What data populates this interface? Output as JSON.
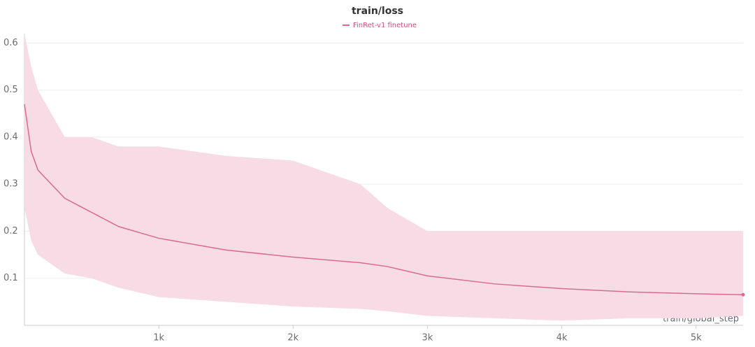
{
  "chart_data": {
    "type": "line",
    "title": "train/loss",
    "x_label": "train/global_step",
    "x": [
      0,
      50,
      100,
      200,
      300,
      500,
      700,
      1000,
      1500,
      2000,
      2500,
      2700,
      3000,
      3500,
      4000,
      4500,
      5000,
      5350
    ],
    "series": [
      {
        "name": "FinRet-v1 finetune",
        "color": "#d96b92",
        "values": [
          0.47,
          0.37,
          0.33,
          0.3,
          0.27,
          0.24,
          0.21,
          0.185,
          0.16,
          0.145,
          0.133,
          0.125,
          0.105,
          0.088,
          0.078,
          0.071,
          0.067,
          0.065
        ],
        "band_low": [
          0.25,
          0.18,
          0.15,
          0.13,
          0.11,
          0.1,
          0.08,
          0.06,
          0.05,
          0.04,
          0.035,
          0.03,
          0.02,
          0.015,
          0.01,
          0.015,
          0.015,
          0.02
        ],
        "band_high": [
          0.62,
          0.55,
          0.5,
          0.45,
          0.4,
          0.4,
          0.38,
          0.38,
          0.36,
          0.35,
          0.3,
          0.25,
          0.2,
          0.2,
          0.2,
          0.2,
          0.2,
          0.2
        ],
        "band_color": "#f7dbe5"
      }
    ],
    "xlim": [
      0,
      5350
    ],
    "ylim": [
      0,
      0.62
    ],
    "xticks": [
      {
        "value": 1000,
        "label": "1k"
      },
      {
        "value": 2000,
        "label": "2k"
      },
      {
        "value": 3000,
        "label": "3k"
      },
      {
        "value": 4000,
        "label": "4k"
      },
      {
        "value": 5000,
        "label": "5k"
      }
    ],
    "yticks": [
      0.1,
      0.2,
      0.3,
      0.4,
      0.5,
      0.6
    ],
    "grid": true
  }
}
